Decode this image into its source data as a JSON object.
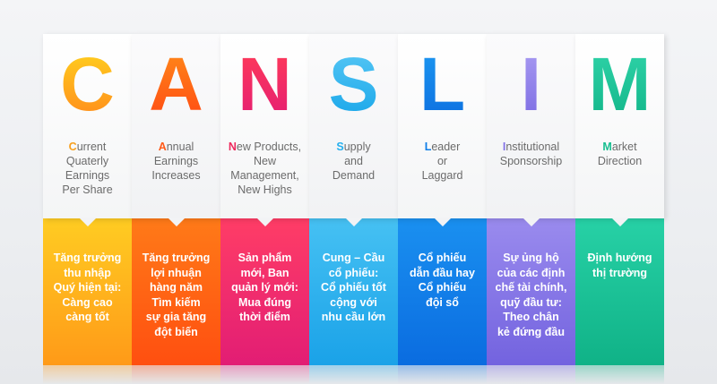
{
  "columns": [
    {
      "letter": "C",
      "first": "C",
      "desc_lines": [
        "urrent",
        "Quaterly",
        "Earnings",
        "Per Share"
      ],
      "vi_lines": [
        "Tăng trưởng",
        "thu nhập",
        "Quý hiện tại:",
        "Càng cao",
        "càng tốt"
      ]
    },
    {
      "letter": "A",
      "first": "A",
      "desc_lines": [
        "nnual",
        "Earnings",
        "Increases"
      ],
      "vi_lines": [
        "Tăng trưởng",
        "lợi nhuận",
        "hàng năm",
        "Tìm kiếm",
        "sự gia tăng",
        "đột biến"
      ]
    },
    {
      "letter": "N",
      "first": "N",
      "desc_lines": [
        "ew Products,",
        "New",
        "Management,",
        "New Highs"
      ],
      "vi_lines": [
        "Sản phẩm",
        "mới, Ban",
        "quản lý mới:",
        "Mua đúng",
        "thời điểm"
      ]
    },
    {
      "letter": "S",
      "first": "S",
      "desc_lines": [
        "upply",
        "and",
        "Demand"
      ],
      "vi_lines": [
        "Cung – Cầu",
        "cổ phiếu:",
        "Cổ phiếu tốt",
        "cộng với",
        "nhu cầu lớn"
      ]
    },
    {
      "letter": "L",
      "first": "L",
      "desc_lines": [
        "eader",
        "or",
        "Laggard"
      ],
      "vi_lines": [
        "Cổ phiếu",
        "dẫn đầu hay",
        "Cổ phiếu",
        "đội sổ"
      ]
    },
    {
      "letter": "I",
      "first": "I",
      "desc_lines": [
        "nstitutional",
        "Sponsorship"
      ],
      "vi_lines": [
        "Sự ủng hộ",
        "của các định",
        "chế tài chính,",
        "quỹ đầu tư:",
        "Theo chân",
        "kẻ đứng đầu"
      ]
    },
    {
      "letter": "M",
      "first": "M",
      "desc_lines": [
        "arket",
        "Direction"
      ],
      "vi_lines": [
        "Định hướng",
        "thị trường"
      ]
    }
  ]
}
